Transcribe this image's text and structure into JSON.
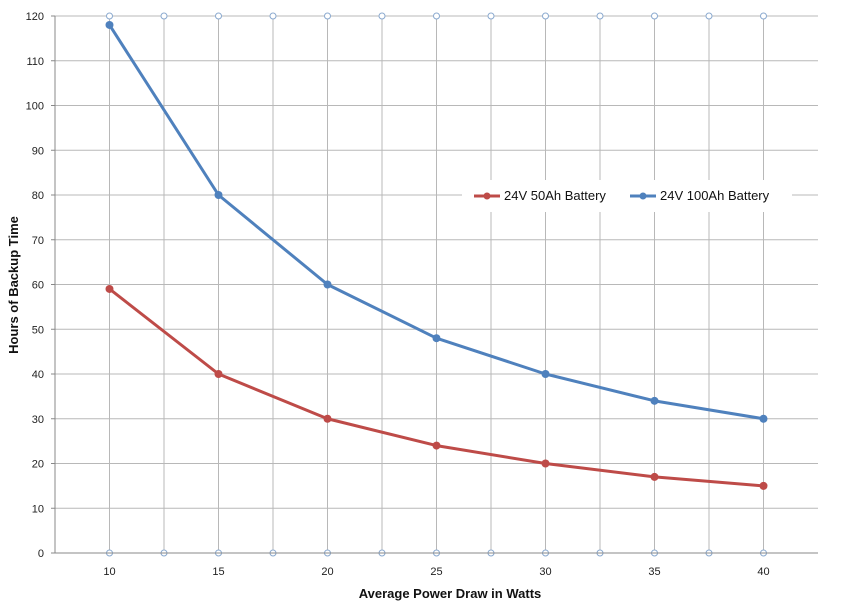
{
  "chart_data": {
    "type": "line",
    "xlabel": "Average Power Draw in Watts",
    "ylabel": "Hours of Backup Time",
    "x": [
      10,
      15,
      20,
      25,
      30,
      35,
      40
    ],
    "x_tick_labels": [
      "10",
      "15",
      "20",
      "25",
      "30",
      "35",
      "40"
    ],
    "xlim": [
      7.5,
      42.5
    ],
    "ylim": [
      0,
      120
    ],
    "y_ticks": [
      0,
      10,
      20,
      30,
      40,
      50,
      60,
      70,
      80,
      90,
      100,
      110,
      120
    ],
    "grid": true,
    "legend_position": "right-center",
    "series": [
      {
        "name": "24V 50Ah Battery",
        "color": "#be4b48",
        "marker": "circle",
        "values": [
          59,
          40,
          30,
          24,
          20,
          17,
          15
        ]
      },
      {
        "name": "24V 100Ah Battery",
        "color": "#4f81bd",
        "marker": "circle",
        "values": [
          118,
          80,
          60,
          48,
          40,
          34,
          30
        ]
      }
    ]
  }
}
